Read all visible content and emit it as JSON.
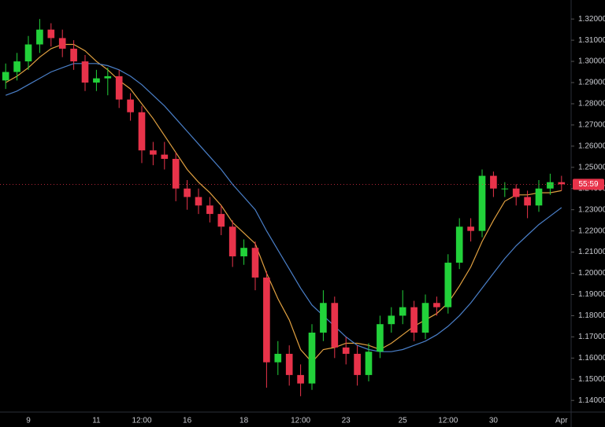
{
  "chart_data": {
    "type": "candlestick",
    "categories": [
      null,
      null,
      "9",
      null,
      null,
      null,
      null,
      null,
      "11",
      null,
      null,
      null,
      "12:00",
      null,
      null,
      null,
      "16",
      null,
      null,
      null,
      null,
      "18",
      null,
      null,
      null,
      null,
      "12:00",
      null,
      null,
      null,
      "23",
      null,
      null,
      null,
      null,
      "25",
      null,
      null,
      null,
      "12:00",
      null,
      null,
      null,
      "30",
      null,
      null,
      null,
      null,
      null,
      "Apr"
    ],
    "open": [
      1.291,
      1.295,
      1.3,
      1.308,
      1.315,
      1.311,
      1.306,
      1.3,
      1.29,
      1.292,
      1.293,
      1.282,
      1.276,
      1.258,
      1.256,
      1.254,
      1.24,
      1.236,
      1.232,
      1.228,
      1.222,
      1.208,
      1.212,
      1.198,
      1.158,
      1.162,
      1.152,
      1.148,
      1.172,
      1.186,
      1.165,
      1.162,
      1.152,
      1.163,
      1.176,
      1.18,
      1.184,
      1.172,
      1.186,
      1.184,
      1.205,
      1.222,
      1.22,
      1.246,
      1.24,
      1.24,
      1.236,
      1.232,
      1.24,
      1.243
    ],
    "high": [
      1.299,
      1.304,
      1.312,
      1.32,
      1.318,
      1.315,
      1.31,
      1.303,
      1.296,
      1.297,
      1.296,
      1.285,
      1.279,
      1.262,
      1.262,
      1.257,
      1.244,
      1.24,
      1.236,
      1.232,
      1.225,
      1.216,
      1.215,
      1.201,
      1.168,
      1.166,
      1.157,
      1.176,
      1.192,
      1.189,
      1.17,
      1.166,
      1.167,
      1.18,
      1.184,
      1.192,
      1.187,
      1.19,
      1.189,
      1.209,
      1.226,
      1.226,
      1.249,
      1.248,
      1.243,
      1.242,
      1.239,
      1.244,
      1.247,
      1.246
    ],
    "low": [
      1.287,
      1.291,
      1.296,
      1.304,
      1.307,
      1.302,
      1.296,
      1.286,
      1.286,
      1.284,
      1.278,
      1.272,
      1.252,
      1.251,
      1.249,
      1.234,
      1.23,
      1.228,
      1.224,
      1.218,
      1.203,
      1.204,
      1.192,
      1.146,
      1.152,
      1.147,
      1.142,
      1.145,
      1.168,
      1.16,
      1.157,
      1.147,
      1.149,
      1.16,
      1.172,
      1.176,
      1.168,
      1.169,
      1.18,
      1.181,
      1.202,
      1.215,
      1.217,
      1.236,
      1.236,
      1.232,
      1.226,
      1.229,
      1.237,
      1.239
    ],
    "close": [
      1.295,
      1.3,
      1.308,
      1.315,
      1.311,
      1.306,
      1.3,
      1.29,
      1.292,
      1.293,
      1.282,
      1.276,
      1.258,
      1.256,
      1.254,
      1.24,
      1.236,
      1.232,
      1.228,
      1.222,
      1.208,
      1.212,
      1.198,
      1.158,
      1.162,
      1.152,
      1.148,
      1.172,
      1.186,
      1.165,
      1.162,
      1.152,
      1.163,
      1.176,
      1.18,
      1.184,
      1.172,
      1.186,
      1.184,
      1.205,
      1.222,
      1.22,
      1.246,
      1.24,
      1.24,
      1.236,
      1.232,
      1.24,
      1.243,
      1.242
    ],
    "up_color": "#22d13a",
    "down_color": "#e8334a",
    "lines": [
      {
        "color": "#e0a040",
        "values": [
          1.29,
          1.293,
          1.297,
          1.302,
          1.306,
          1.308,
          1.308,
          1.305,
          1.3,
          1.296,
          1.291,
          1.287,
          1.28,
          1.273,
          1.265,
          1.257,
          1.249,
          1.243,
          1.238,
          1.232,
          1.224,
          1.219,
          1.214,
          1.2,
          1.188,
          1.178,
          1.164,
          1.158,
          1.164,
          1.165,
          1.167,
          1.167,
          1.166,
          1.164,
          1.167,
          1.171,
          1.175,
          1.178,
          1.181,
          1.186,
          1.194,
          1.203,
          1.215,
          1.225,
          1.234,
          1.237,
          1.237,
          1.238,
          1.238,
          1.239
        ]
      },
      {
        "color": "#4a7fc8",
        "values": [
          1.284,
          1.286,
          1.289,
          1.292,
          1.295,
          1.297,
          1.299,
          1.299,
          1.299,
          1.298,
          1.296,
          1.293,
          1.289,
          1.284,
          1.279,
          1.273,
          1.267,
          1.261,
          1.255,
          1.249,
          1.242,
          1.236,
          1.23,
          1.22,
          1.211,
          1.202,
          1.193,
          1.185,
          1.18,
          1.175,
          1.17,
          1.166,
          1.164,
          1.163,
          1.163,
          1.164,
          1.166,
          1.168,
          1.171,
          1.175,
          1.18,
          1.186,
          1.193,
          1.2,
          1.207,
          1.213,
          1.218,
          1.223,
          1.227,
          1.231
        ]
      }
    ],
    "countdown": "55:59",
    "ylim": [
      1.136,
      1.326
    ],
    "yticks": [
      {
        "value": 1.14,
        "label": "1.14000"
      },
      {
        "value": 1.15,
        "label": "1.15000"
      },
      {
        "value": 1.16,
        "label": "1.16000"
      },
      {
        "value": 1.17,
        "label": "1.17000"
      },
      {
        "value": 1.18,
        "label": "1.18000"
      },
      {
        "value": 1.19,
        "label": "1.19000"
      },
      {
        "value": 1.2,
        "label": "1.20000"
      },
      {
        "value": 1.21,
        "label": "1.21000"
      },
      {
        "value": 1.22,
        "label": "1.22000"
      },
      {
        "value": 1.23,
        "label": "1.23000"
      },
      {
        "value": 1.24,
        "label": "1.24000"
      },
      {
        "value": 1.25,
        "label": "1.25000"
      },
      {
        "value": 1.26,
        "label": "1.26000"
      },
      {
        "value": 1.27,
        "label": "1.27000"
      },
      {
        "value": 1.28,
        "label": "1.28000"
      },
      {
        "value": 1.29,
        "label": "1.29000"
      },
      {
        "value": 1.3,
        "label": "1.30000"
      },
      {
        "value": 1.31,
        "label": "1.31000"
      },
      {
        "value": 1.32,
        "label": "1.32000"
      }
    ],
    "grid": false
  }
}
